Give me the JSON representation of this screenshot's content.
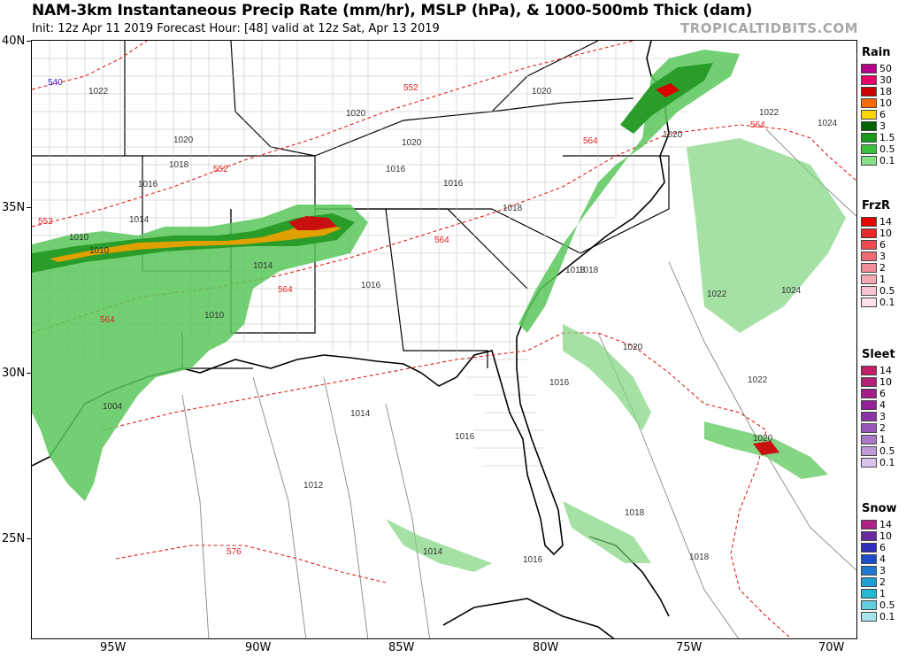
{
  "header": {
    "title": "NAM-3km Instantaneous Precip Rate (mm/hr), MSLP (hPa), & 1000-500mb Thick (dam)",
    "subtitle": "Init: 12z Apr 11 2019   Forecast Hour: [48]   valid at 12z Sat, Apr 13 2019",
    "brand": "TROPICALTIDBITS.COM"
  },
  "axes": {
    "lat_labels": [
      "40N",
      "35N",
      "30N",
      "25N"
    ],
    "lon_labels": [
      "95W",
      "90W",
      "85W",
      "80W",
      "75W",
      "70W"
    ]
  },
  "map_labels": {
    "thickness": [
      "540",
      "552",
      "552",
      "552",
      "564",
      "564",
      "564",
      "564",
      "564",
      "576"
    ],
    "pressure": [
      "1022",
      "1020",
      "1020",
      "1020",
      "1018",
      "1016",
      "1014",
      "1010",
      "1010",
      "1016",
      "1016",
      "1014",
      "1010",
      "1004",
      "1020",
      "1018",
      "1016",
      "1018",
      "1016",
      "1014",
      "1012",
      "1014",
      "1016",
      "1018",
      "1018",
      "1020",
      "1022",
      "1020",
      "1022",
      "1024",
      "1022",
      "1024",
      "1016",
      "1018",
      "1020"
    ]
  },
  "legends": [
    {
      "title": "Rain",
      "labels": [
        "50",
        "30",
        "18",
        "10",
        "6",
        "3",
        "1.5",
        "0.5",
        "0.1"
      ],
      "colors": [
        "#b3008a",
        "#e8006a",
        "#cc0000",
        "#ff6a00",
        "#ffd700",
        "#006400",
        "#1a9a1a",
        "#39c239",
        "#86e086"
      ]
    },
    {
      "title": "FrzR",
      "labels": [
        "14",
        "10",
        "6",
        "3",
        "2",
        "1",
        "0.5",
        "0.1"
      ],
      "colors": [
        "#e60000",
        "#e8282a",
        "#ec4c50",
        "#ef6b74",
        "#f28c98",
        "#f5a9b6",
        "#f8c6d1",
        "#fce3ea"
      ]
    },
    {
      "title": "Sleet",
      "labels": [
        "14",
        "10",
        "6",
        "4",
        "3",
        "2",
        "1",
        "0.5",
        "0.1"
      ],
      "colors": [
        "#c21f68",
        "#b31f77",
        "#a31f88",
        "#932098",
        "#8c33a8",
        "#9a55ba",
        "#ab77ca",
        "#c09bdb",
        "#d8c3ec"
      ]
    },
    {
      "title": "Snow",
      "labels": [
        "14",
        "10",
        "6",
        "4",
        "3",
        "2",
        "1",
        "0.5",
        "0.1"
      ],
      "colors": [
        "#b02089",
        "#6a2aa0",
        "#2e2eb8",
        "#1d4ccd",
        "#1e78d2",
        "#1ea0d6",
        "#24b8d2",
        "#62cfe0",
        "#a7e4ee"
      ]
    }
  ]
}
